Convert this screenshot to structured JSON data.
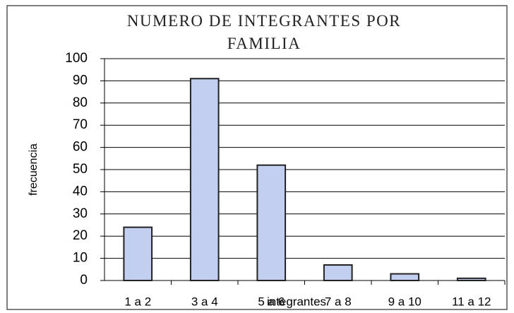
{
  "chart_data": {
    "type": "bar",
    "title": "NUMERO DE INTEGRANTES POR FAMILIA",
    "x_label": "integrantes",
    "y_label": "frecuencia",
    "categories": [
      "1 a 2",
      "3 a 4",
      "5 a 6",
      "7 a 8",
      "9 a 10",
      "11 a 12"
    ],
    "values": [
      24,
      91,
      52,
      7,
      3,
      1
    ],
    "color": "#c3cff0",
    "ylim": [
      0,
      100
    ],
    "yticks": [
      0,
      10,
      20,
      30,
      40,
      50,
      60,
      70,
      80,
      90,
      100
    ],
    "grid": true
  }
}
